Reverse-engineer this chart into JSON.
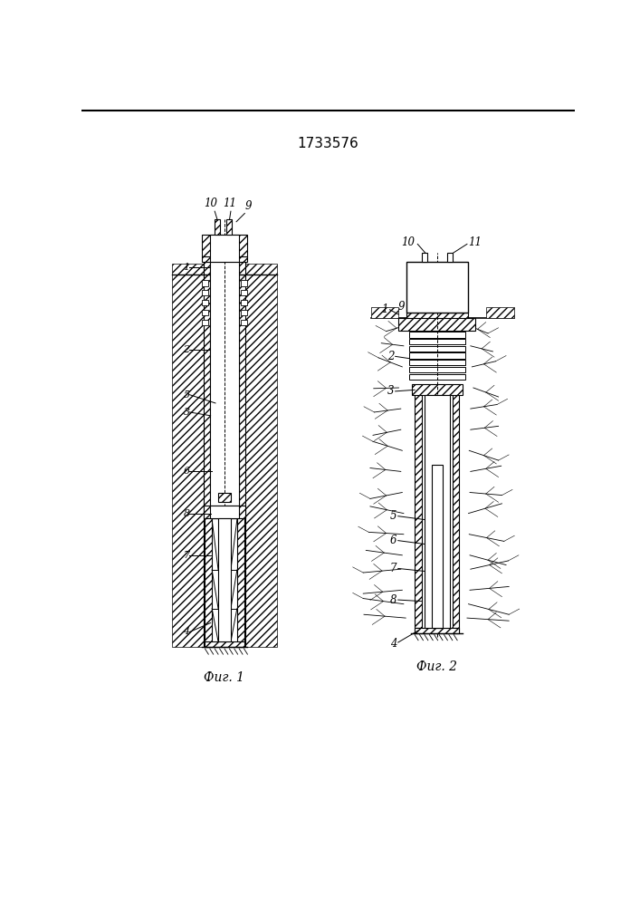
{
  "title": "1733576",
  "fig1_caption": "Фиг. 1",
  "fig2_caption": "Фиг. 2",
  "bg_color": "#ffffff"
}
